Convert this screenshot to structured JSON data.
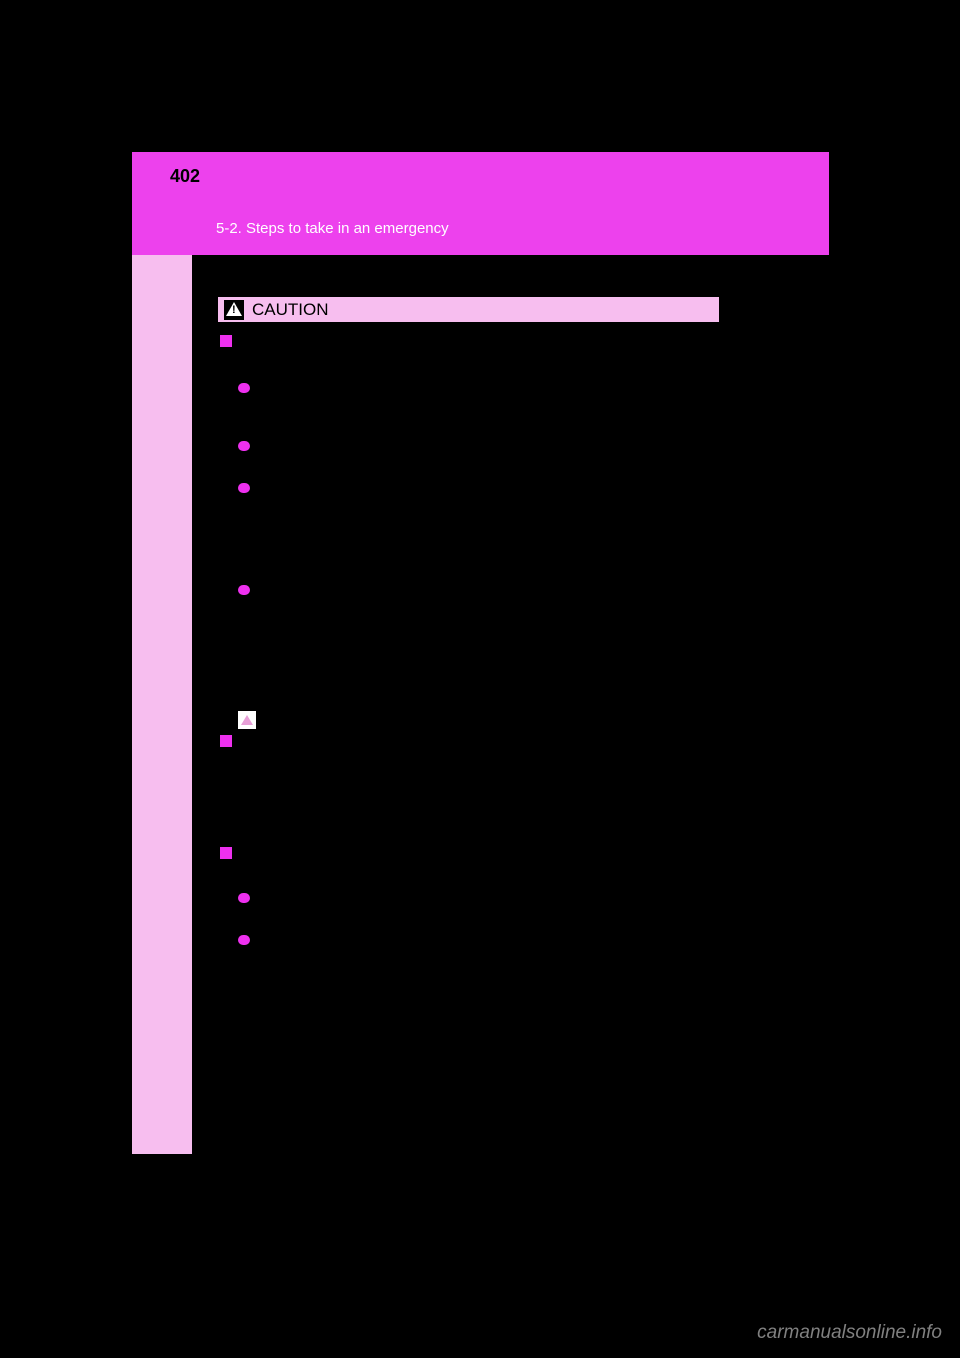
{
  "colors": {
    "background": "#000000",
    "header_bar": "#ed41ed",
    "sidebar": "#f7beef",
    "caution_box": "#f7beef",
    "caution_text": "#000000",
    "marker": "#ee30ef",
    "bullet": "#ee30ef",
    "watermark": "#808080",
    "section_title": "#ffffff"
  },
  "header": {
    "page_number": "402",
    "section_title": "5-2. Steps to take in an emergency"
  },
  "caution": {
    "label": "CAUTION"
  },
  "markers": {
    "section_count": 3,
    "bullet_count": 6
  },
  "watermark": "carmanualsonline.info"
}
